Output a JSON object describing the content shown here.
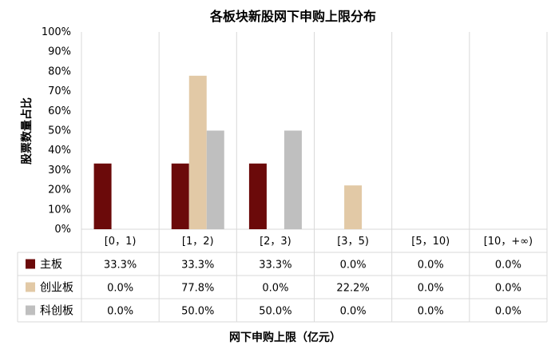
{
  "chart_data": {
    "type": "bar",
    "title": "各板块新股网下申购上限分布",
    "xlabel": "网下申购上限（亿元）",
    "ylabel": "股票数量占比",
    "ylim": [
      0,
      100
    ],
    "y_ticks": [
      "0%",
      "10%",
      "20%",
      "30%",
      "40%",
      "50%",
      "60%",
      "70%",
      "80%",
      "90%",
      "100%"
    ],
    "categories": [
      "[0，1)",
      "[1，2)",
      "[2，3)",
      "[3，5)",
      "[5，10)",
      "[10，+∞)"
    ],
    "series": [
      {
        "name": "主板",
        "color": "#6b0a0a",
        "values": [
          33.3,
          33.3,
          33.3,
          0.0,
          0.0,
          0.0
        ],
        "labels": [
          "33.3%",
          "33.3%",
          "33.3%",
          "0.0%",
          "0.0%",
          "0.0%"
        ]
      },
      {
        "name": "创业板",
        "color": "#e2c9a6",
        "values": [
          0.0,
          77.8,
          0.0,
          22.2,
          0.0,
          0.0
        ],
        "labels": [
          "0.0%",
          "77.8%",
          "0.0%",
          "22.2%",
          "0.0%",
          "0.0%"
        ]
      },
      {
        "name": "科创板",
        "color": "#bfbfbf",
        "values": [
          0.0,
          50.0,
          50.0,
          0.0,
          0.0,
          0.0
        ],
        "labels": [
          "0.0%",
          "50.0%",
          "50.0%",
          "0.0%",
          "0.0%",
          "0.0%"
        ]
      }
    ],
    "grid": "vertical",
    "legend": "data-table"
  }
}
